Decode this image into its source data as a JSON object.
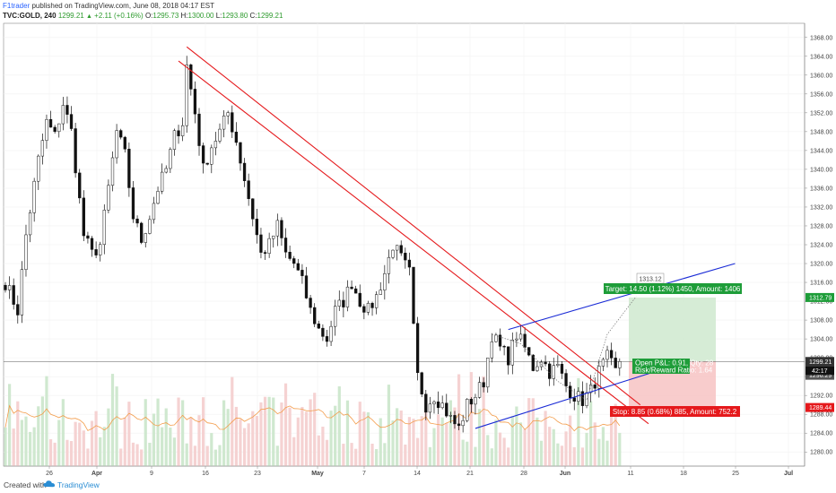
{
  "header": {
    "publisher": "F1trader",
    "published_text": "published on TradingView.com, June 08, 2018 04:17 EST",
    "symbol": "TVC:GOLD, 240",
    "last": "1299.21",
    "change": "+2.11 (+0.16%)",
    "o_label": "O:",
    "o_value": "1295.73",
    "h_label": "H:",
    "h_value": "1300.00",
    "l_label": "L:",
    "l_value": "1293.80",
    "c_label": "C:",
    "c_value": "1299.21"
  },
  "footer": {
    "created_with": "Created with",
    "brand": "TradingView"
  },
  "chart_data": {
    "type": "candlestick",
    "ylim": [
      1277,
      1371
    ],
    "y_ticks": [
      "1368.00",
      "1364.00",
      "1360.00",
      "1356.00",
      "1352.00",
      "1348.00",
      "1344.00",
      "1340.00",
      "1336.00",
      "1332.00",
      "1328.00",
      "1324.00",
      "1320.00",
      "1316.00",
      "1312.00",
      "1308.00",
      "1304.00",
      "1300.00",
      "1296.00",
      "1292.00",
      "1288.00",
      "1284.00",
      "1280.00"
    ],
    "x_ticks": [
      {
        "label": "26",
        "bold": false
      },
      {
        "label": "Apr",
        "bold": true
      },
      {
        "label": "9",
        "bold": false
      },
      {
        "label": "16",
        "bold": false
      },
      {
        "label": "23",
        "bold": false
      },
      {
        "label": "May",
        "bold": true
      },
      {
        "label": "7",
        "bold": false
      },
      {
        "label": "14",
        "bold": false
      },
      {
        "label": "21",
        "bold": false
      },
      {
        "label": "28",
        "bold": false
      },
      {
        "label": "Jun",
        "bold": true
      },
      {
        "label": "11",
        "bold": false
      },
      {
        "label": "18",
        "bold": false
      },
      {
        "label": "25",
        "bold": false
      },
      {
        "label": "Jul",
        "bold": true
      }
    ],
    "price_path": [
      [
        0,
        1316
      ],
      [
        3,
        1310
      ],
      [
        5,
        1326
      ],
      [
        8,
        1342
      ],
      [
        10,
        1350
      ],
      [
        12,
        1347
      ],
      [
        14,
        1354
      ],
      [
        16,
        1348
      ],
      [
        19,
        1326
      ],
      [
        21,
        1322
      ],
      [
        23,
        1324
      ],
      [
        25,
        1336
      ],
      [
        27,
        1348
      ],
      [
        29,
        1343
      ],
      [
        31,
        1330
      ],
      [
        33,
        1325
      ],
      [
        35,
        1330
      ],
      [
        37,
        1336
      ],
      [
        39,
        1340
      ],
      [
        41,
        1347
      ],
      [
        43,
        1350
      ],
      [
        44,
        1362
      ],
      [
        46,
        1352
      ],
      [
        48,
        1340
      ],
      [
        50,
        1345
      ],
      [
        52,
        1348
      ],
      [
        54,
        1352
      ],
      [
        56,
        1346
      ],
      [
        58,
        1338
      ],
      [
        60,
        1330
      ],
      [
        62,
        1322
      ],
      [
        64,
        1324
      ],
      [
        66,
        1328
      ],
      [
        68,
        1322
      ],
      [
        70,
        1320
      ],
      [
        72,
        1316
      ],
      [
        74,
        1310
      ],
      [
        76,
        1306
      ],
      [
        78,
        1304
      ],
      [
        80,
        1310
      ],
      [
        82,
        1312
      ],
      [
        84,
        1316
      ],
      [
        86,
        1312
      ],
      [
        88,
        1310
      ],
      [
        90,
        1313
      ],
      [
        92,
        1318
      ],
      [
        94,
        1324
      ],
      [
        96,
        1321
      ],
      [
        98,
        1318
      ],
      [
        99,
        1306
      ],
      [
        100,
        1296
      ],
      [
        102,
        1290
      ],
      [
        104,
        1292
      ],
      [
        106,
        1290
      ],
      [
        108,
        1287
      ],
      [
        110,
        1285
      ],
      [
        112,
        1290
      ],
      [
        114,
        1292
      ],
      [
        116,
        1295
      ],
      [
        118,
        1305
      ],
      [
        120,
        1302
      ],
      [
        122,
        1300
      ],
      [
        124,
        1305
      ],
      [
        126,
        1302
      ],
      [
        128,
        1298
      ],
      [
        130,
        1300
      ],
      [
        132,
        1297
      ],
      [
        134,
        1298
      ],
      [
        136,
        1294
      ],
      [
        138,
        1292
      ],
      [
        140,
        1291
      ],
      [
        142,
        1293
      ],
      [
        144,
        1297
      ],
      [
        146,
        1300
      ],
      [
        148,
        1297
      ],
      [
        149,
        1299.21
      ]
    ],
    "last_price": "1299.21",
    "countdown": "42:17",
    "price_labels": [
      {
        "price": "1312.79",
        "value": 1312.79,
        "color": "#1e9d39"
      },
      {
        "price": "1296.29",
        "value": 1296.29,
        "color": "#555555"
      },
      {
        "price": "1289.44",
        "value": 1289.44,
        "color": "#e5191c"
      }
    ],
    "target_label": "1313.12",
    "target": "Target: 14.50 (1.12%) 1450, Amount: 1406",
    "open_pnl": "Open P&L: 0.91, Qty: 28",
    "risk_reward": "Risk/Reward Ratio: 1.64",
    "stop": "Stop: 8.85 (0.68%) 885, Amount: 752.2",
    "lines": {
      "downtrend_upper": {
        "color": "#e5191c",
        "from": [
          44,
          1366
        ],
        "to": [
          154,
          1290
        ]
      },
      "downtrend_lower": {
        "color": "#e5191c",
        "from": [
          42,
          1363
        ],
        "to": [
          156,
          1286
        ]
      },
      "channel_upper": {
        "color": "#1a2bd6",
        "from": [
          122,
          1306
        ],
        "to": [
          177,
          1320
        ]
      },
      "channel_lower": {
        "color": "#1a2bd6",
        "from": [
          114,
          1285
        ],
        "to": [
          161,
          1298
        ]
      }
    }
  }
}
